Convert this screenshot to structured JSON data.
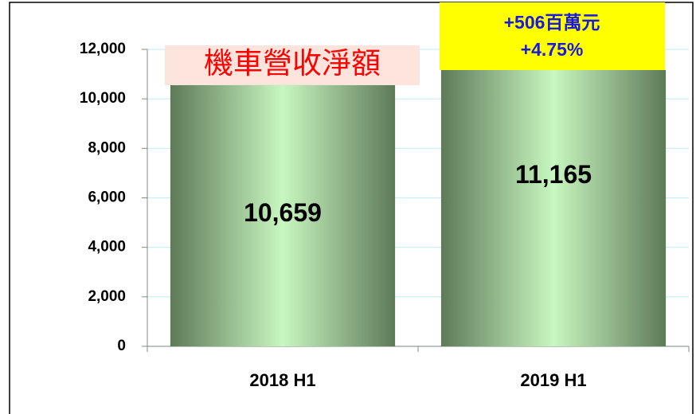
{
  "chart_data": {
    "type": "bar",
    "title": "機車營收淨額",
    "annotations": [
      "+506百萬元",
      "+4.75%"
    ],
    "categories": [
      "2018 H1",
      "2019 H1"
    ],
    "values": [
      10659,
      11165
    ],
    "value_labels": [
      "10,659",
      "11,165"
    ],
    "color": "#b8eeb0",
    "ylim": [
      0,
      12000
    ],
    "yticks": [
      0,
      {
        "value": 2000,
        "label": "2,000"
      },
      {
        "value": 4000,
        "label": "4,000"
      },
      {
        "value": 6000,
        "label": "6,000"
      },
      {
        "value": 8000,
        "label": "8,000"
      },
      {
        "value": 10000,
        "label": "10,000"
      },
      {
        "value": 12000,
        "label": "12,000"
      }
    ],
    "grid": true
  }
}
